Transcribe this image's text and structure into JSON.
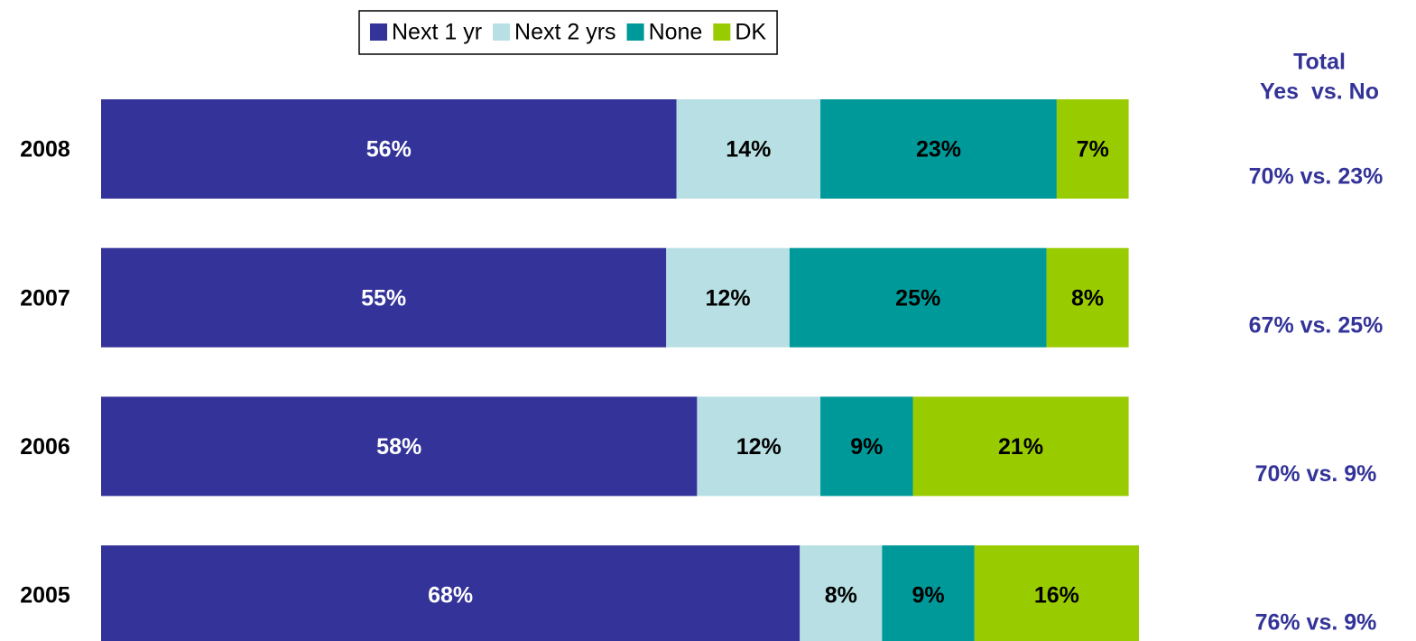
{
  "chart_data": {
    "type": "stacked-bar-horizontal",
    "categories": [
      "2008",
      "2007",
      "2006",
      "2005"
    ],
    "series": [
      {
        "name": "Next 1 yr",
        "color": "#333399",
        "values": [
          56,
          55,
          58,
          68
        ],
        "value_labels": [
          "56%",
          "55%",
          "58%",
          "68%"
        ]
      },
      {
        "name": "Next 2 yrs",
        "color": "#b8e0e4",
        "values": [
          14,
          12,
          12,
          8
        ],
        "value_labels": [
          "14%",
          "12%",
          "12%",
          "8%"
        ]
      },
      {
        "name": "None",
        "color": "#009999",
        "values": [
          23,
          25,
          9,
          9
        ],
        "value_labels": [
          "23%",
          "25%",
          "9%",
          "9%"
        ]
      },
      {
        "name": "DK",
        "color": "#99cc00",
        "values": [
          7,
          8,
          21,
          16
        ],
        "value_labels": [
          "7%",
          "8%",
          "21%",
          "16%"
        ]
      }
    ],
    "totals_title": [
      "Total",
      "Yes  vs. No"
    ],
    "totals": [
      "70% vs. 23%",
      "67% vs. 25%",
      "70% vs. 9%",
      "76% vs. 9%"
    ],
    "totals_color": "#333399",
    "legend": "top"
  }
}
